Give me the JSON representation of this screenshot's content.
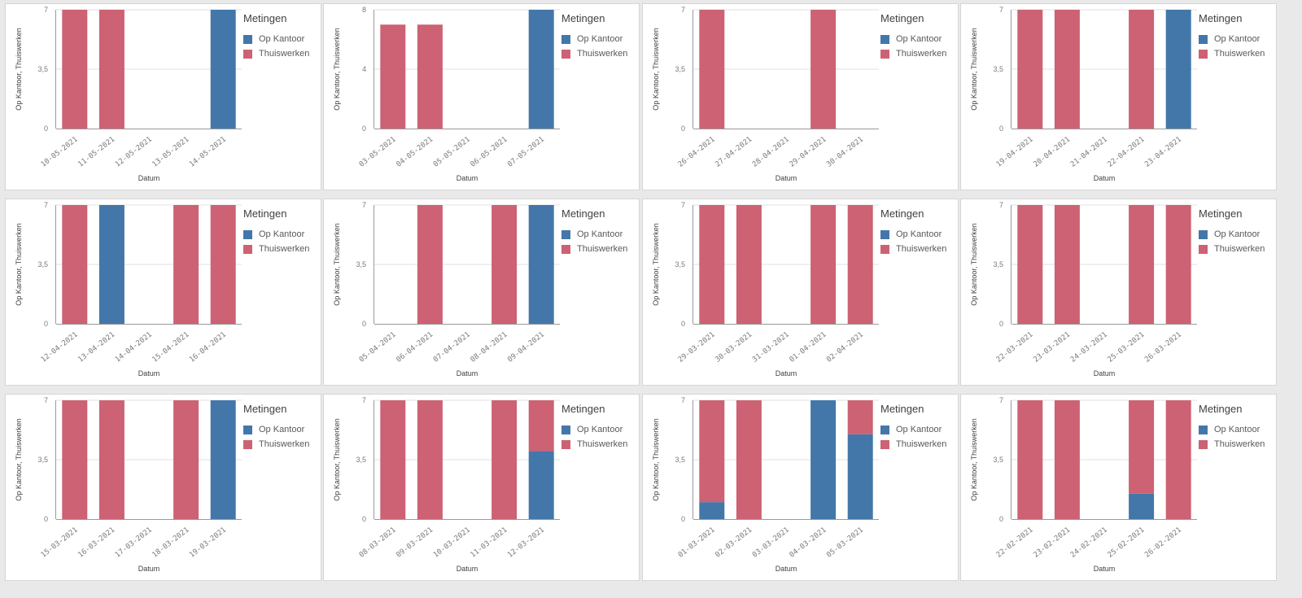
{
  "colors": {
    "op_kantoor": "#4377a9",
    "thuiswerken": "#cc6273",
    "grid": "#e0e0e0",
    "axis": "#9a9a9a"
  },
  "chart_data": [
    {
      "type": "bar",
      "stacked": true,
      "xlabel": "Datum",
      "ylabel": "Op Kantoor, Thuiswerken",
      "yticks": [
        "0",
        "3,5",
        "7"
      ],
      "ylim": [
        0,
        7
      ],
      "categories": [
        "10-05-2021",
        "11-05-2021",
        "12-05-2021",
        "13-05-2021",
        "14-05-2021"
      ],
      "series": [
        {
          "name": "Op Kantoor",
          "values": [
            0,
            0,
            0,
            0,
            7
          ]
        },
        {
          "name": "Thuiswerken",
          "values": [
            7,
            7,
            0,
            0,
            0
          ]
        }
      ],
      "legend": {
        "title": "Metingen",
        "position": "right"
      }
    },
    {
      "type": "bar",
      "stacked": true,
      "xlabel": "Datum",
      "ylabel": "Op Kantoor, Thuiswerken",
      "yticks": [
        "0",
        "4",
        "8"
      ],
      "ylim": [
        0,
        8
      ],
      "categories": [
        "03-05-2021",
        "04-05-2021",
        "05-05-2021",
        "06-05-2021",
        "07-05-2021"
      ],
      "series": [
        {
          "name": "Op Kantoor",
          "values": [
            0,
            0,
            0,
            0,
            8
          ]
        },
        {
          "name": "Thuiswerken",
          "values": [
            7,
            7,
            0,
            0,
            0
          ]
        }
      ],
      "legend": {
        "title": "Metingen",
        "position": "right"
      }
    },
    {
      "type": "bar",
      "stacked": true,
      "xlabel": "Datum",
      "ylabel": "Op Kantoor, Thuiswerken",
      "yticks": [
        "0",
        "3,5",
        "7"
      ],
      "ylim": [
        0,
        7
      ],
      "categories": [
        "26-04-2021",
        "27-04-2021",
        "28-04-2021",
        "29-04-2021",
        "30-04-2021"
      ],
      "series": [
        {
          "name": "Op Kantoor",
          "values": [
            0,
            0,
            0,
            0,
            0
          ]
        },
        {
          "name": "Thuiswerken",
          "values": [
            7,
            0,
            0,
            7,
            0
          ]
        }
      ],
      "legend": {
        "title": "Metingen",
        "position": "right"
      }
    },
    {
      "type": "bar",
      "stacked": true,
      "xlabel": "Datum",
      "ylabel": "Op Kantoor, Thuiswerken",
      "yticks": [
        "0",
        "3,5",
        "7"
      ],
      "ylim": [
        0,
        7
      ],
      "categories": [
        "19-04-2021",
        "20-04-2021",
        "21-04-2021",
        "22-04-2021",
        "23-04-2021"
      ],
      "series": [
        {
          "name": "Op Kantoor",
          "values": [
            0,
            0,
            0,
            0,
            7
          ]
        },
        {
          "name": "Thuiswerken",
          "values": [
            7,
            7,
            0,
            7,
            0
          ]
        }
      ],
      "legend": {
        "title": "Metingen",
        "position": "right"
      }
    },
    {
      "type": "bar",
      "stacked": true,
      "xlabel": "Datum",
      "ylabel": "Op Kantoor, Thuiswerken",
      "yticks": [
        "0",
        "3,5",
        "7"
      ],
      "ylim": [
        0,
        7
      ],
      "categories": [
        "12-04-2021",
        "13-04-2021",
        "14-04-2021",
        "15-04-2021",
        "16-04-2021"
      ],
      "series": [
        {
          "name": "Op Kantoor",
          "values": [
            0,
            7,
            0,
            0,
            0
          ]
        },
        {
          "name": "Thuiswerken",
          "values": [
            7,
            0,
            0,
            7,
            7
          ]
        }
      ],
      "legend": {
        "title": "Metingen",
        "position": "right"
      }
    },
    {
      "type": "bar",
      "stacked": true,
      "xlabel": "Datum",
      "ylabel": "Op Kantoor, Thuiswerken",
      "yticks": [
        "0",
        "3,5",
        "7"
      ],
      "ylim": [
        0,
        7
      ],
      "categories": [
        "05-04-2021",
        "06-04-2021",
        "07-04-2021",
        "08-04-2021",
        "09-04-2021"
      ],
      "series": [
        {
          "name": "Op Kantoor",
          "values": [
            0,
            0,
            0,
            0,
            7
          ]
        },
        {
          "name": "Thuiswerken",
          "values": [
            0,
            7,
            0,
            7,
            0
          ]
        }
      ],
      "legend": {
        "title": "Metingen",
        "position": "right"
      }
    },
    {
      "type": "bar",
      "stacked": true,
      "xlabel": "Datum",
      "ylabel": "Op Kantoor, Thuiswerken",
      "yticks": [
        "0",
        "3,5",
        "7"
      ],
      "ylim": [
        0,
        7
      ],
      "categories": [
        "29-03-2021",
        "30-03-2021",
        "31-03-2021",
        "01-04-2021",
        "02-04-2021"
      ],
      "series": [
        {
          "name": "Op Kantoor",
          "values": [
            0,
            0,
            0,
            0,
            0
          ]
        },
        {
          "name": "Thuiswerken",
          "values": [
            7,
            7,
            0,
            7,
            7
          ]
        }
      ],
      "legend": {
        "title": "Metingen",
        "position": "right"
      }
    },
    {
      "type": "bar",
      "stacked": true,
      "xlabel": "Datum",
      "ylabel": "Op Kantoor, Thuiswerken",
      "yticks": [
        "0",
        "3,5",
        "7"
      ],
      "ylim": [
        0,
        7
      ],
      "categories": [
        "22-03-2021",
        "23-03-2021",
        "24-03-2021",
        "25-03-2021",
        "26-03-2021"
      ],
      "series": [
        {
          "name": "Op Kantoor",
          "values": [
            0,
            0,
            0,
            0,
            0
          ]
        },
        {
          "name": "Thuiswerken",
          "values": [
            7,
            7,
            0,
            7,
            7
          ]
        }
      ],
      "legend": {
        "title": "Metingen",
        "position": "right"
      }
    },
    {
      "type": "bar",
      "stacked": true,
      "xlabel": "Datum",
      "ylabel": "Op Kantoor, Thuiswerken",
      "yticks": [
        "0",
        "3,5",
        "7"
      ],
      "ylim": [
        0,
        7
      ],
      "categories": [
        "15-03-2021",
        "16-03-2021",
        "17-03-2021",
        "18-03-2021",
        "19-03-2021"
      ],
      "series": [
        {
          "name": "Op Kantoor",
          "values": [
            0,
            0,
            0,
            0,
            7
          ]
        },
        {
          "name": "Thuiswerken",
          "values": [
            7,
            7,
            0,
            7,
            0
          ]
        }
      ],
      "legend": {
        "title": "Metingen",
        "position": "right"
      }
    },
    {
      "type": "bar",
      "stacked": true,
      "xlabel": "Datum",
      "ylabel": "Op Kantoor, Thuiswerken",
      "yticks": [
        "0",
        "3,5",
        "7"
      ],
      "ylim": [
        0,
        7
      ],
      "categories": [
        "08-03-2021",
        "09-03-2021",
        "10-03-2021",
        "11-03-2021",
        "12-03-2021"
      ],
      "series": [
        {
          "name": "Op Kantoor",
          "values": [
            0,
            0,
            0,
            0,
            4
          ]
        },
        {
          "name": "Thuiswerken",
          "values": [
            7,
            7,
            0,
            7,
            3
          ]
        }
      ],
      "legend": {
        "title": "Metingen",
        "position": "right"
      }
    },
    {
      "type": "bar",
      "stacked": true,
      "xlabel": "Datum",
      "ylabel": "Op Kantoor, Thuiswerken",
      "yticks": [
        "0",
        "3,5",
        "7"
      ],
      "ylim": [
        0,
        7
      ],
      "categories": [
        "01-03-2021",
        "02-03-2021",
        "03-03-2021",
        "04-03-2021",
        "05-03-2021"
      ],
      "series": [
        {
          "name": "Op Kantoor",
          "values": [
            1,
            0,
            0,
            7,
            5
          ]
        },
        {
          "name": "Thuiswerken",
          "values": [
            6,
            7,
            0,
            0,
            2
          ]
        }
      ],
      "legend": {
        "title": "Metingen",
        "position": "right"
      }
    },
    {
      "type": "bar",
      "stacked": true,
      "xlabel": "Datum",
      "ylabel": "Op Kantoor, Thuiswerken",
      "yticks": [
        "0",
        "3,5",
        "7"
      ],
      "ylim": [
        0,
        7
      ],
      "categories": [
        "22-02-2021",
        "23-02-2021",
        "24-02-2021",
        "25-02-2021",
        "26-02-2021"
      ],
      "series": [
        {
          "name": "Op Kantoor",
          "values": [
            0,
            0,
            0,
            1.5,
            0
          ]
        },
        {
          "name": "Thuiswerken",
          "values": [
            7,
            7,
            0,
            5.5,
            7
          ]
        }
      ],
      "legend": {
        "title": "Metingen",
        "position": "right"
      }
    }
  ]
}
